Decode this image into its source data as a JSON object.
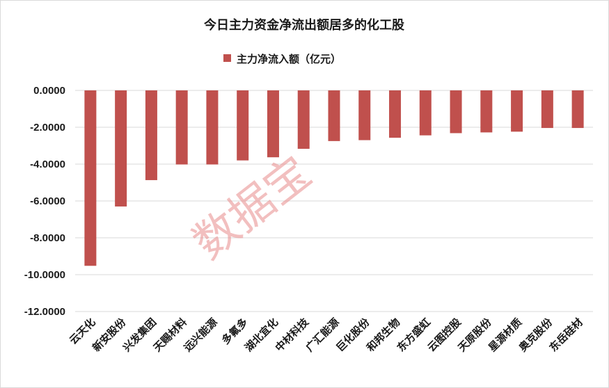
{
  "chart_data": {
    "type": "bar",
    "title": "今日主力资金净流出额居多的化工股",
    "legend": {
      "label": "主力净流入额（亿元）",
      "placement": "top"
    },
    "categories": [
      "云天化",
      "新安股份",
      "兴发集团",
      "天赐材料",
      "远兴能源",
      "多氟多",
      "湖北宜化",
      "中材科技",
      "广汇能源",
      "巨化股份",
      "和邦生物",
      "东方盛虹",
      "云图控股",
      "天原股份",
      "星源材质",
      "奥克股份",
      "东岳硅材"
    ],
    "series": [
      {
        "name": "主力净流入额（亿元）",
        "values": [
          -9.52,
          -6.3,
          -4.87,
          -4.02,
          -4.02,
          -3.8,
          -3.63,
          -3.17,
          -2.75,
          -2.7,
          -2.57,
          -2.44,
          -2.32,
          -2.28,
          -2.24,
          -2.04,
          -2.04
        ]
      }
    ],
    "ylim": [
      -12,
      0
    ],
    "yticks": [
      0,
      -2,
      -4,
      -6,
      -8,
      -10,
      -12
    ],
    "ytick_labels": [
      "0.0000",
      "-2.0000",
      "-4.0000",
      "-6.0000",
      "-8.0000",
      "-10.0000",
      "-12.0000"
    ],
    "grid": true,
    "bar_color": "#c0504d"
  },
  "watermark": "数据宝"
}
